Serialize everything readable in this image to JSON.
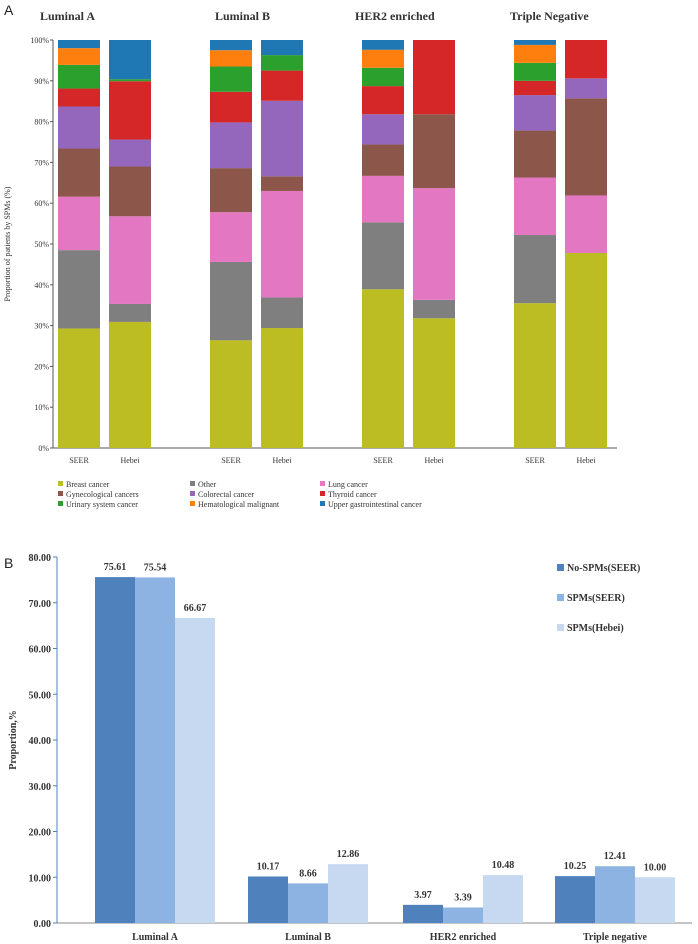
{
  "panel_labels": {
    "a": "A",
    "b": "B"
  },
  "chart_data": [
    {
      "type": "bar",
      "stacked": true,
      "ylabel": "Proportion of patients by SPMs (%)",
      "ylim": [
        0,
        100
      ],
      "yticks": [
        "0%",
        "10%",
        "20%",
        "30%",
        "40%",
        "50%",
        "60%",
        "70%",
        "80%",
        "90%",
        "100%"
      ],
      "groups": [
        "Luminal A",
        "Luminal B",
        "HER2 enriched",
        "Triple Negative"
      ],
      "bar_labels": [
        "SEER",
        "Hebei"
      ],
      "series": [
        {
          "name": "Breast cancer",
          "color": "#bcbd22",
          "values": [
            [
              29.3,
              30.9
            ],
            [
              26.4,
              29.4
            ],
            [
              38.9,
              31.8
            ],
            [
              35.5,
              47.8
            ]
          ]
        },
        {
          "name": "Other",
          "color": "#7f7f7f",
          "values": [
            [
              19.2,
              4.4
            ],
            [
              19.2,
              7.5
            ],
            [
              16.4,
              4.5
            ],
            [
              16.7,
              0
            ]
          ]
        },
        {
          "name": "Lung cancer",
          "color": "#e377c2",
          "values": [
            [
              13.1,
              21.5
            ],
            [
              12.2,
              26.1
            ],
            [
              11.4,
              27.4
            ],
            [
              14.1,
              14.1
            ]
          ]
        },
        {
          "name": "Gynecological cancers",
          "color": "#8c564b",
          "values": [
            [
              11.8,
              12.2
            ],
            [
              10.8,
              3.6
            ],
            [
              7.7,
              18.1
            ],
            [
              11.5,
              23.8
            ]
          ]
        },
        {
          "name": "Colorectal cancer",
          "color": "#9467bd",
          "values": [
            [
              10.3,
              6.6
            ],
            [
              11.2,
              18.5
            ],
            [
              7.4,
              0
            ],
            [
              8.7,
              4.9
            ]
          ]
        },
        {
          "name": "Thyroid cancer",
          "color": "#d62728",
          "values": [
            [
              4.4,
              14.3
            ],
            [
              7.5,
              7.4
            ],
            [
              6.9,
              18.2
            ],
            [
              3.5,
              9.4
            ]
          ]
        },
        {
          "name": "Urinary system cancer",
          "color": "#2ca02c",
          "values": [
            [
              5.8,
              0.5
            ],
            [
              6.2,
              3.8
            ],
            [
              4.5,
              0
            ],
            [
              4.4,
              0
            ]
          ]
        },
        {
          "name": "Hematological malignant",
          "color": "#ff7f0e",
          "values": [
            [
              4.1,
              0
            ],
            [
              4.0,
              0
            ],
            [
              4.4,
              0
            ],
            [
              4.4,
              0
            ]
          ]
        },
        {
          "name": "Upper gastrointestinal cancer",
          "color": "#1f77b4",
          "values": [
            [
              2.0,
              9.6
            ],
            [
              2.5,
              3.7
            ],
            [
              2.4,
              0
            ],
            [
              1.2,
              0
            ]
          ]
        }
      ],
      "legend": "bottom"
    },
    {
      "type": "bar",
      "ylabel": "Proportion,%",
      "ylim": [
        0,
        80
      ],
      "yticks": [
        "0.00",
        "10.00",
        "20.00",
        "30.00",
        "40.00",
        "50.00",
        "60.00",
        "70.00",
        "80.00"
      ],
      "categories": [
        "Luminal A",
        "Luminal B",
        "HER2 enriched",
        "Triple negative"
      ],
      "series": [
        {
          "name": "No-SPMs(SEER)",
          "color": "#4f81bd",
          "values": [
            75.61,
            10.17,
            3.97,
            10.25
          ],
          "labels": [
            "75.61",
            "10.17",
            "3.97",
            "10.25"
          ]
        },
        {
          "name": "SPMs(SEER)",
          "color": "#8db3e2",
          "values": [
            75.54,
            8.66,
            3.39,
            12.41
          ],
          "labels": [
            "75.54",
            "8.66",
            "3.39",
            "12.41"
          ]
        },
        {
          "name": "SPMs(Hebei)",
          "color": "#c6d9f1",
          "values": [
            66.67,
            12.86,
            10.48,
            10.0
          ],
          "labels": [
            "66.67",
            "12.86",
            "10.48",
            "10.00"
          ]
        }
      ],
      "legend": "top-right"
    }
  ]
}
